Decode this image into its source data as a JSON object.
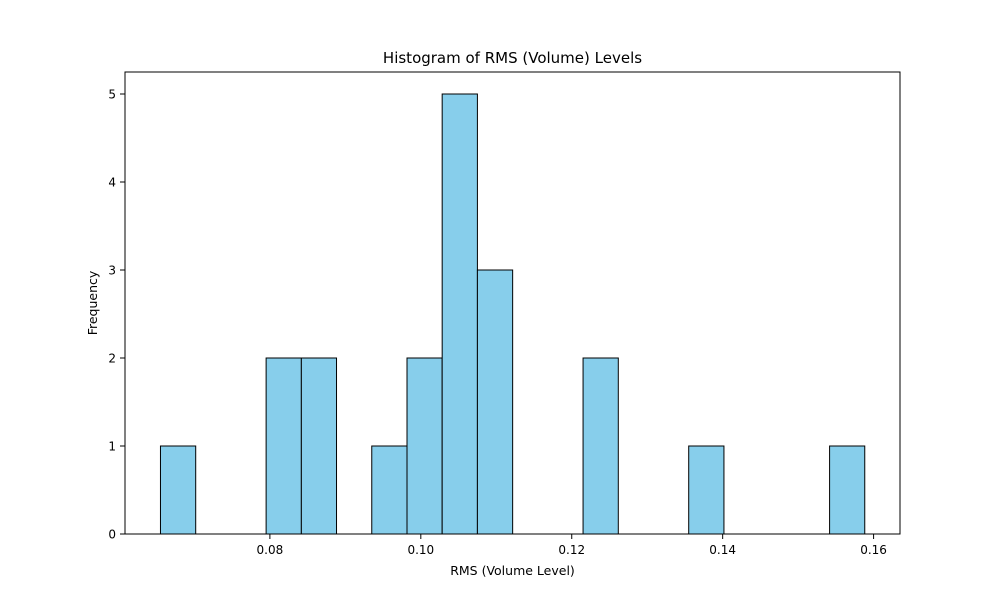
{
  "chart_data": {
    "type": "bar",
    "title": "Histogram of RMS (Volume) Levels",
    "xlabel": "RMS (Volume Level)",
    "ylabel": "Frequency",
    "xlim": [
      0.0608,
      0.1635
    ],
    "ylim": [
      0,
      5.25
    ],
    "xticks": [
      0.08,
      0.1,
      0.12,
      0.14,
      0.16
    ],
    "xtick_labels": [
      "0.08",
      "0.10",
      "0.12",
      "0.14",
      "0.16"
    ],
    "yticks": [
      0,
      1,
      2,
      3,
      4,
      5
    ],
    "ytick_labels": [
      "0",
      "1",
      "2",
      "3",
      "4",
      "5"
    ],
    "bin_edges": [
      0.0655,
      0.07017,
      0.07483,
      0.0795,
      0.08417,
      0.08883,
      0.0935,
      0.09817,
      0.10283,
      0.1075,
      0.11217,
      0.11683,
      0.1215,
      0.12617,
      0.13083,
      0.1355,
      0.14017,
      0.14483,
      0.1495,
      0.15417,
      0.15883
    ],
    "counts": [
      1,
      0,
      0,
      2,
      2,
      0,
      1,
      2,
      5,
      3,
      0,
      0,
      2,
      0,
      0,
      1,
      0,
      0,
      0,
      1
    ],
    "bar_color": "#87CEEB",
    "edge_color": "#000000",
    "grid": false,
    "legend": "none"
  }
}
